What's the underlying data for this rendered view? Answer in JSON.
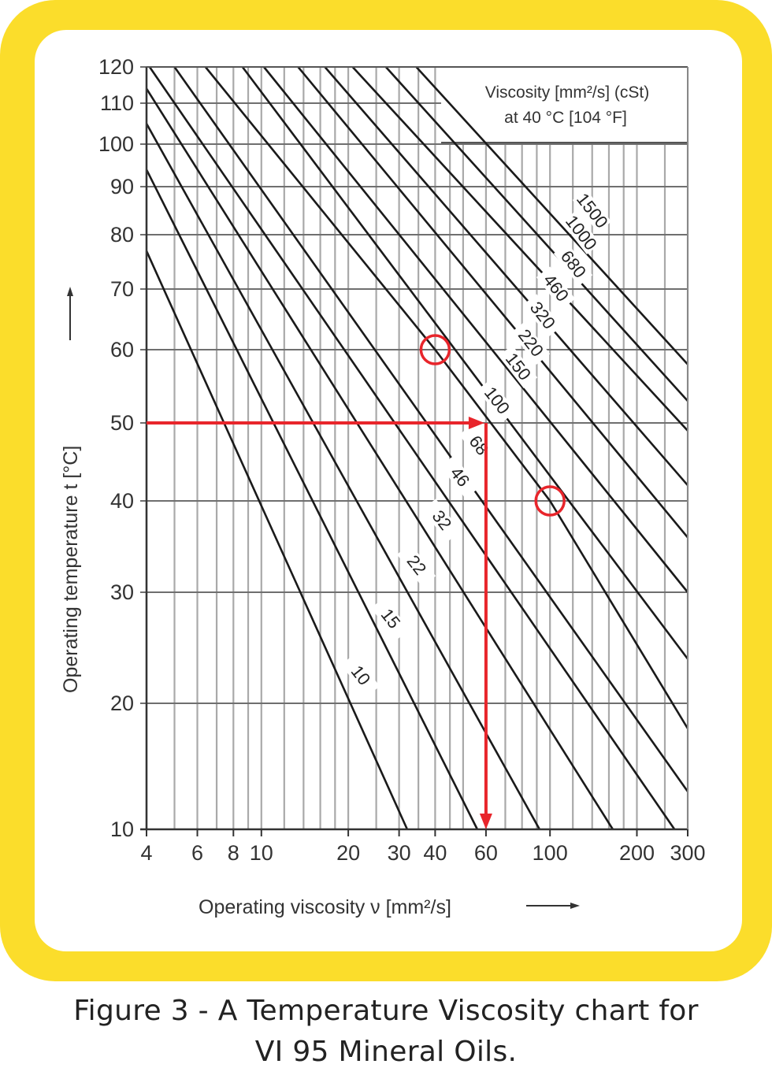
{
  "figure": {
    "caption_line1": "Figure 3 - A Temperature Viscosity chart for",
    "caption_line2": "VI 95 Mineral Oils.",
    "frame_color": "#fbdd2b",
    "highlight_color": "#e8252b"
  },
  "chart_data": {
    "type": "line",
    "title": "Temperature Viscosity chart for VI 95 Mineral Oils",
    "xlabel": "Operating viscosity ν [mm²/s]",
    "ylabel": "Operating temperature  t [°C]",
    "x_scale": "log",
    "xlim": [
      4,
      300
    ],
    "ylim": [
      10,
      120
    ],
    "x_ticks": [
      4,
      6,
      8,
      10,
      20,
      30,
      40,
      60,
      100,
      200,
      300
    ],
    "x_tick_labels": [
      "4",
      "6",
      "8",
      "10",
      "20",
      "30",
      "40",
      "60",
      "100",
      "200",
      "300"
    ],
    "y_ticks": [
      10,
      20,
      30,
      40,
      50,
      60,
      70,
      80,
      90,
      100,
      110,
      120
    ],
    "y_tick_labels": [
      "10",
      "20",
      "30",
      "40",
      "50",
      "60",
      "70",
      "80",
      "90",
      "100",
      "110",
      "120"
    ],
    "grid": true,
    "legend_box": {
      "line1": "Viscosity [mm²/s] (cSt)",
      "line2": "at 40 °C [104 °F]"
    },
    "series": [
      {
        "name": "10",
        "visc_at_40C": 10,
        "points": [
          {
            "nu": 4.0,
            "t": 77
          },
          {
            "nu": 32,
            "t": 10
          }
        ]
      },
      {
        "name": "15",
        "visc_at_40C": 15,
        "points": [
          {
            "nu": 4.0,
            "t": 94
          },
          {
            "nu": 56,
            "t": 10
          }
        ]
      },
      {
        "name": "22",
        "visc_at_40C": 22,
        "points": [
          {
            "nu": 4.0,
            "t": 105
          },
          {
            "nu": 92,
            "t": 10
          }
        ]
      },
      {
        "name": "32",
        "visc_at_40C": 32,
        "points": [
          {
            "nu": 4.0,
            "t": 114
          },
          {
            "nu": 165,
            "t": 10
          }
        ]
      },
      {
        "name": "46",
        "visc_at_40C": 46,
        "points": [
          {
            "nu": 4.1,
            "t": 120
          },
          {
            "nu": 270,
            "t": 10
          }
        ]
      },
      {
        "name": "68",
        "visc_at_40C": 68,
        "points": [
          {
            "nu": 5.0,
            "t": 120
          },
          {
            "nu": 300,
            "t": 13
          }
        ]
      },
      {
        "name": "100",
        "visc_at_40C": 100,
        "points": [
          {
            "nu": 6.4,
            "t": 120
          },
          {
            "nu": 40,
            "t": 60
          },
          {
            "nu": 100,
            "t": 40
          },
          {
            "nu": 300,
            "t": 18
          }
        ]
      },
      {
        "name": "150",
        "visc_at_40C": 150,
        "points": [
          {
            "nu": 8.6,
            "t": 120
          },
          {
            "nu": 300,
            "t": 24
          }
        ]
      },
      {
        "name": "220",
        "visc_at_40C": 220,
        "points": [
          {
            "nu": 10.2,
            "t": 120
          },
          {
            "nu": 300,
            "t": 30
          }
        ]
      },
      {
        "name": "320",
        "visc_at_40C": 320,
        "points": [
          {
            "nu": 13.4,
            "t": 120
          },
          {
            "nu": 300,
            "t": 36
          }
        ]
      },
      {
        "name": "460",
        "visc_at_40C": 460,
        "points": [
          {
            "nu": 16.6,
            "t": 120
          },
          {
            "nu": 300,
            "t": 42
          }
        ]
      },
      {
        "name": "680",
        "visc_at_40C": 680,
        "points": [
          {
            "nu": 20.7,
            "t": 120
          },
          {
            "nu": 300,
            "t": 49
          }
        ]
      },
      {
        "name": "1000",
        "visc_at_40C": 1000,
        "points": [
          {
            "nu": 27.0,
            "t": 120
          },
          {
            "nu": 300,
            "t": 53
          }
        ]
      },
      {
        "name": "1500",
        "visc_at_40C": 1500,
        "points": [
          {
            "nu": 34.4,
            "t": 120
          },
          {
            "nu": 300,
            "t": 58
          }
        ]
      }
    ],
    "annotations": [
      {
        "type": "arrow",
        "color": "#e8252b",
        "description": "Horizontal arrow at 50 °C to the VG 68/100 line",
        "from": {
          "nu": 4,
          "t": 50
        },
        "to": {
          "nu": 60,
          "t": 50
        }
      },
      {
        "type": "arrow",
        "color": "#e8252b",
        "description": "Vertical arrow down to 60 mm²/s",
        "from": {
          "nu": 60,
          "t": 50
        },
        "to": {
          "nu": 60,
          "t": 10
        }
      },
      {
        "type": "circle",
        "color": "#e8252b",
        "at": {
          "nu": 40,
          "t": 60
        }
      },
      {
        "type": "circle",
        "color": "#e8252b",
        "at": {
          "nu": 100,
          "t": 40
        }
      }
    ]
  }
}
